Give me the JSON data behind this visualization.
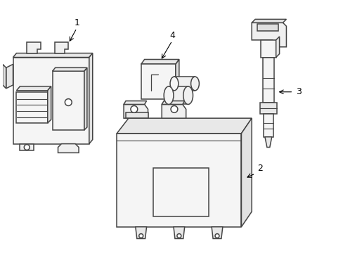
{
  "bg_color": "#ffffff",
  "line_color": "#444444",
  "line_width": 1.1,
  "label_color": "#000000",
  "fig_width": 4.89,
  "fig_height": 3.6,
  "dpi": 100
}
